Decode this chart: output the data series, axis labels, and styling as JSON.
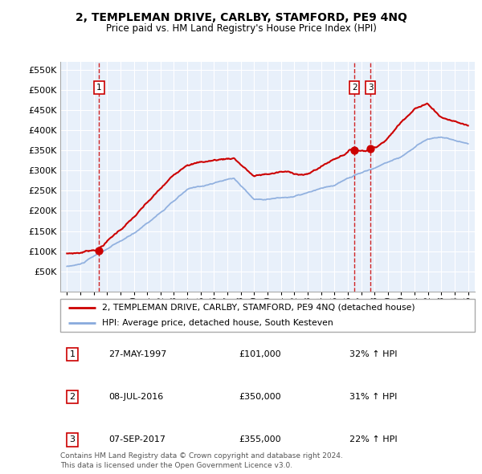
{
  "title": "2, TEMPLEMAN DRIVE, CARLBY, STAMFORD, PE9 4NQ",
  "subtitle": "Price paid vs. HM Land Registry's House Price Index (HPI)",
  "legend_line1": "2, TEMPLEMAN DRIVE, CARLBY, STAMFORD, PE9 4NQ (detached house)",
  "legend_line2": "HPI: Average price, detached house, South Kesteven",
  "footer1": "Contains HM Land Registry data © Crown copyright and database right 2024.",
  "footer2": "This data is licensed under the Open Government Licence v3.0.",
  "transactions": [
    {
      "num": 1,
      "date": "27-MAY-1997",
      "price": 101000,
      "pct": "32%",
      "dir": "↑",
      "x_year": 1997.4
    },
    {
      "num": 2,
      "date": "08-JUL-2016",
      "price": 350000,
      "pct": "31%",
      "dir": "↑",
      "x_year": 2016.5
    },
    {
      "num": 3,
      "date": "07-SEP-2017",
      "price": 355000,
      "pct": "22%",
      "dir": "↑",
      "x_year": 2017.7
    }
  ],
  "ylim": [
    0,
    570000
  ],
  "xlim": [
    1994.5,
    2025.5
  ],
  "yticks": [
    0,
    50000,
    100000,
    150000,
    200000,
    250000,
    300000,
    350000,
    400000,
    450000,
    500000,
    550000
  ],
  "ytick_labels": [
    "",
    "£50K",
    "£100K",
    "£150K",
    "£200K",
    "£250K",
    "£300K",
    "£350K",
    "£400K",
    "£450K",
    "£500K",
    "£550K"
  ],
  "xticks": [
    1995,
    1996,
    1997,
    1998,
    1999,
    2000,
    2001,
    2002,
    2003,
    2004,
    2005,
    2006,
    2007,
    2008,
    2009,
    2010,
    2011,
    2012,
    2013,
    2014,
    2015,
    2016,
    2017,
    2018,
    2019,
    2020,
    2021,
    2022,
    2023,
    2024,
    2025
  ],
  "red_color": "#cc0000",
  "blue_color": "#88aadd",
  "plot_bg": "#e8f0fa",
  "grid_color": "#ffffff"
}
